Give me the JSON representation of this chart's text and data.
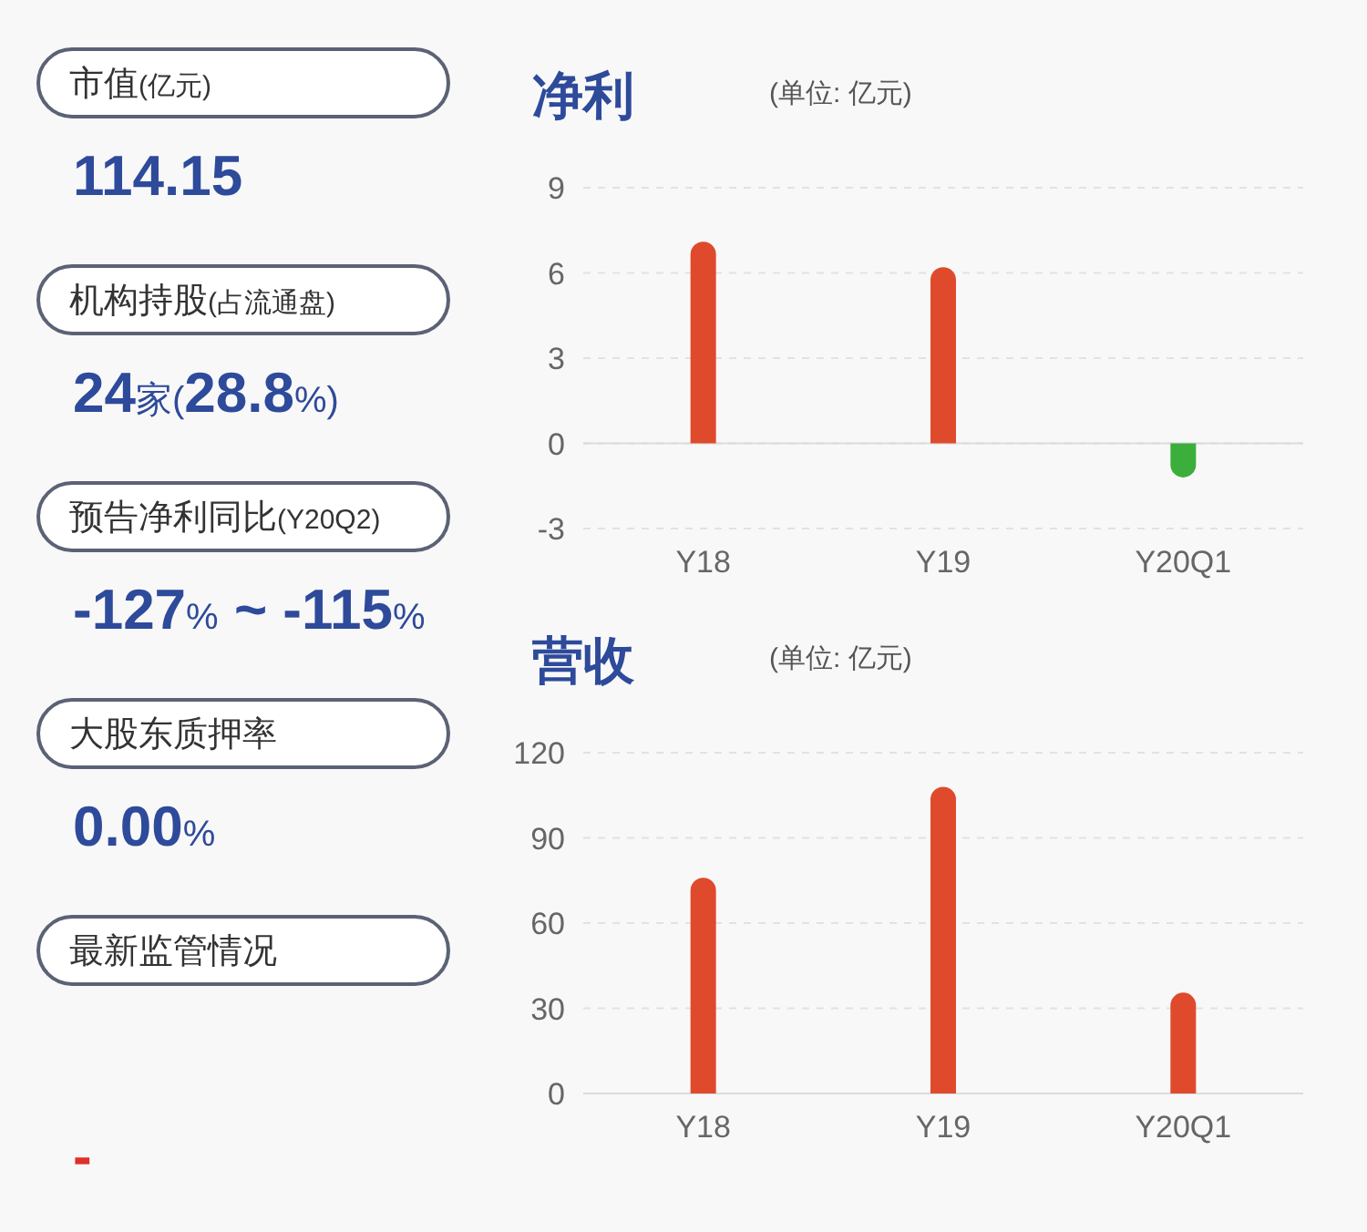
{
  "chart_data": [
    {
      "type": "other",
      "annotations": [
        "市值(亿元)",
        "114.15",
        "机构持股(占流通盘)",
        "24家(28.8%)",
        "预告净利同比(Y20Q2)",
        "-127% ~ -115%",
        "大股东质押率",
        "0.00%",
        "最新监管情况",
        "-"
      ]
    },
    {
      "type": "bar",
      "title": "净利",
      "subtitle": "(单位: 亿元)",
      "categories": [
        "Y18",
        "Y19",
        "Y20Q1"
      ],
      "values": [
        7.1,
        6.2,
        -1.2
      ],
      "colors": [
        "#e04a2c",
        "#e04a2c",
        "#3cae3c"
      ],
      "ylim": [
        -3,
        9
      ],
      "yticks": [
        -3,
        0,
        3,
        6,
        9
      ],
      "grid": "y"
    },
    {
      "type": "bar",
      "title": "营收",
      "subtitle": "(单位: 亿元)",
      "categories": [
        "Y18",
        "Y19",
        "Y20Q1"
      ],
      "values": [
        76,
        108,
        35.5
      ],
      "colors": [
        "#e04a2c",
        "#e04a2c",
        "#e04a2c"
      ],
      "ylim": [
        0,
        120
      ],
      "yticks": [
        0,
        30,
        60,
        90,
        120
      ],
      "grid": "y"
    }
  ]
}
